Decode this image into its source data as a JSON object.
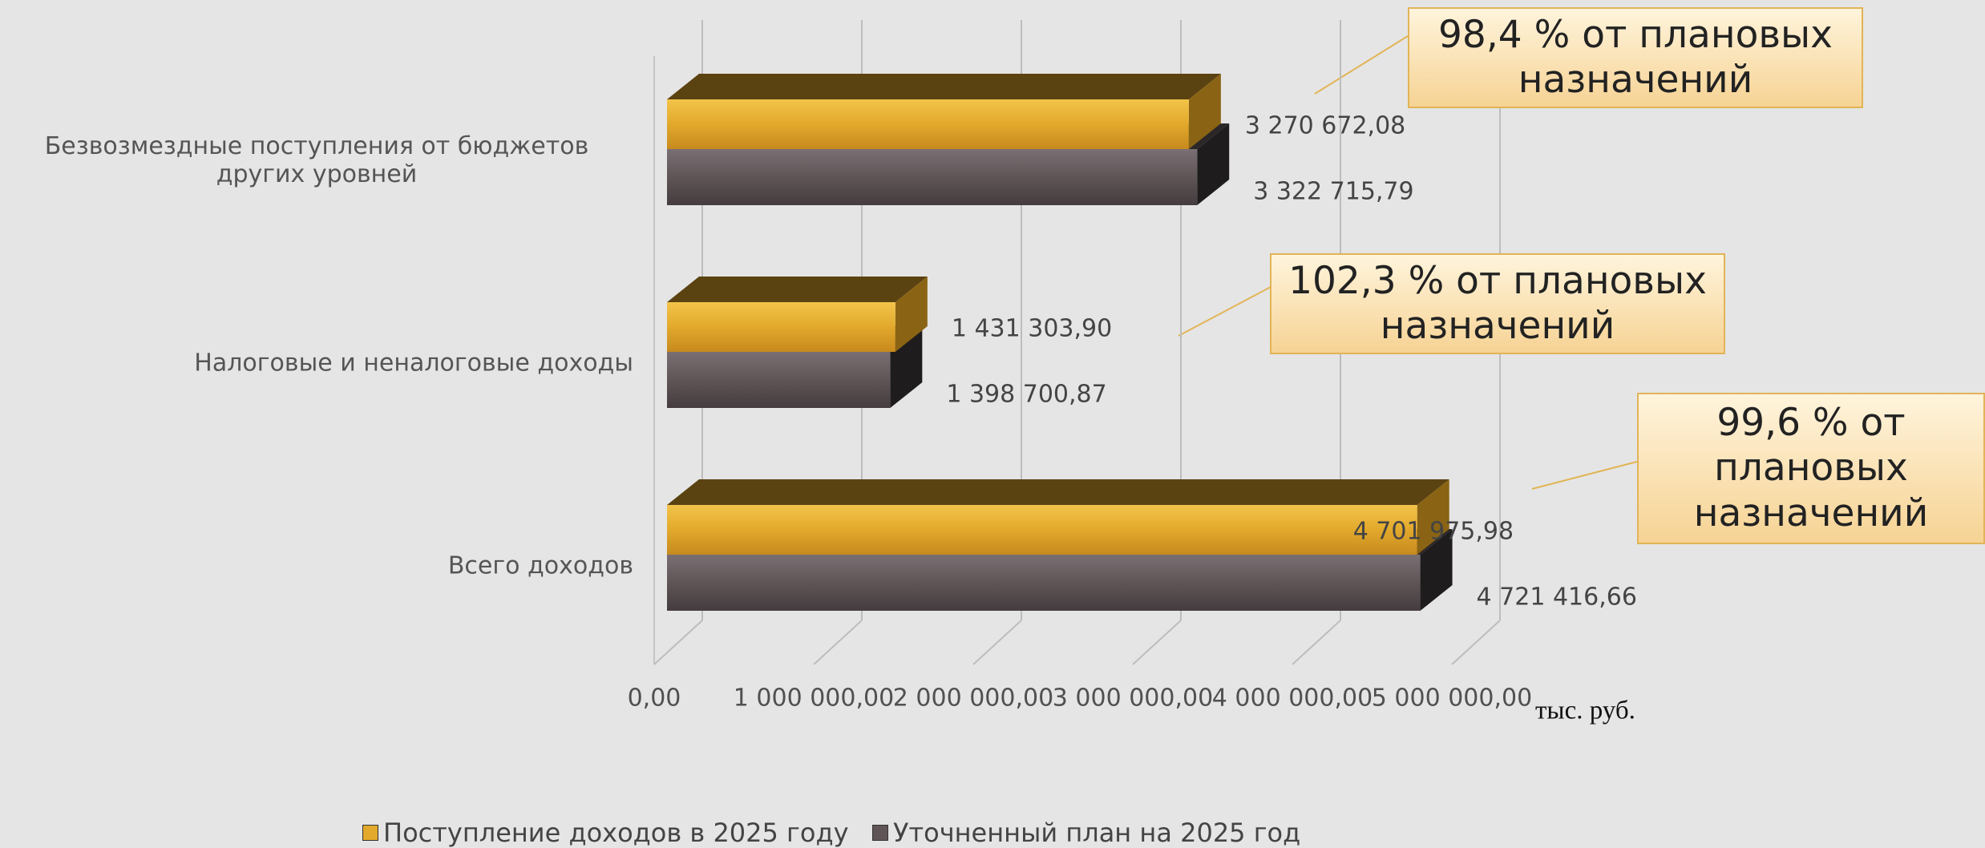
{
  "chart_data": {
    "type": "bar",
    "orientation": "horizontal",
    "categories": [
      "Безвозмездные поступления от бюджетов других уровней",
      "Налоговые и неналоговые доходы",
      "Всего доходов"
    ],
    "series": [
      {
        "name": "Поступление доходов в 2025 году",
        "color": "#e2a92c",
        "values": [
          3270672.08,
          1431303.9,
          4701975.98
        ],
        "value_labels": [
          "3 270 672,08",
          "1 431 303,90",
          "4 701 975,98"
        ]
      },
      {
        "name": "Уточненный план на 2025 год",
        "color": "#5f5557",
        "values": [
          3322715.79,
          1398700.87,
          4721416.66
        ],
        "value_labels": [
          "3 322 715,79",
          "1 398 700,87",
          "4 721 416,66"
        ]
      }
    ],
    "xlim": [
      0,
      5000000
    ],
    "xticks": [
      {
        "value": 0,
        "label": "0,00"
      },
      {
        "value": 1000000,
        "label": "1 000 000,00"
      },
      {
        "value": 2000000,
        "label": "2 000 000,00"
      },
      {
        "value": 3000000,
        "label": "3 000 000,00"
      },
      {
        "value": 4000000,
        "label": "4 000 000,00"
      },
      {
        "value": 5000000,
        "label": "5 000 000,00"
      }
    ],
    "x_unit_label": "тыс. руб.",
    "annotations": [
      "98,4 % от плановых назначений",
      "102,3 % от плановых назначений",
      "99,6 % от плановых назначений"
    ],
    "grid": true,
    "legend": "bottom"
  }
}
